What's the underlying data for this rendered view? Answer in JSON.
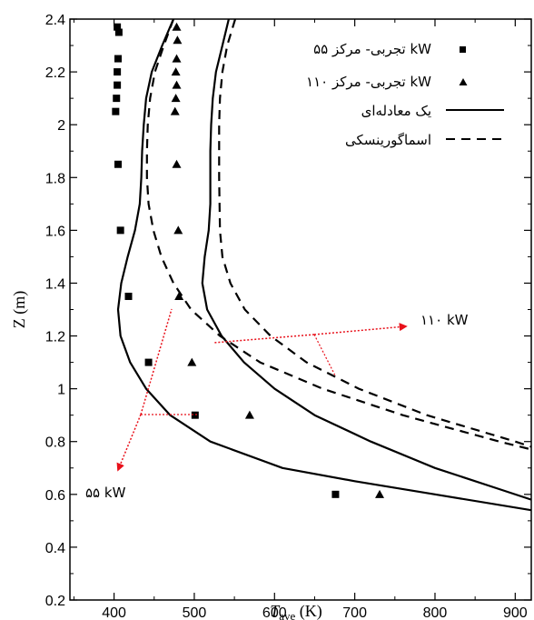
{
  "chart_data": {
    "type": "line",
    "xlabel": {
      "main": "T",
      "sub": "ave",
      "unit": " (K)"
    },
    "ylabel": "Z (m)",
    "xlim": [
      345,
      920
    ],
    "ylim": [
      0.2,
      2.4
    ],
    "xticks": [
      400,
      500,
      600,
      700,
      800,
      900
    ],
    "yticks": [
      0.2,
      0.4,
      0.6,
      0.8,
      1,
      1.2,
      1.4,
      1.6,
      1.8,
      2,
      2.2,
      2.4
    ],
    "ytick_labels": [
      "0.2",
      "0.4",
      "0.6",
      "0.8",
      "1",
      "1.2",
      "1.4",
      "1.6",
      "1.8",
      "2",
      "2.2",
      "2.4"
    ],
    "legend_position": "top-right",
    "series": [
      {
        "name": "تجربی- مرکز ۵۵ kW",
        "style": "square-markers",
        "x": [
          404,
          406,
          405,
          404,
          404,
          403,
          402,
          405,
          408,
          418,
          443,
          501,
          676
        ],
        "y": [
          2.37,
          2.35,
          2.25,
          2.2,
          2.15,
          2.1,
          2.05,
          1.85,
          1.6,
          1.35,
          1.1,
          0.9,
          0.6
        ]
      },
      {
        "name": "تجربی- مرکز ۱۱۰ kW",
        "style": "triangle-markers",
        "x": [
          478,
          479,
          478,
          477,
          478,
          477,
          476,
          478,
          480,
          481,
          497,
          569,
          731
        ],
        "y": [
          2.37,
          2.32,
          2.25,
          2.2,
          2.15,
          2.1,
          2.05,
          1.85,
          1.6,
          1.35,
          1.1,
          0.9,
          0.6
        ]
      },
      {
        "name": "یک معادله‌ای",
        "style": "solid",
        "lines": [
          {
            "x": [
              474,
              460,
              447,
              440,
              437,
              435,
              434,
              432,
              426,
              417,
              409,
              405,
              408,
              420,
              440,
              470,
              520,
              610,
              700,
              800,
              920
            ],
            "y": [
              2.4,
              2.3,
              2.2,
              2.1,
              2.0,
              1.9,
              1.8,
              1.7,
              1.6,
              1.5,
              1.4,
              1.3,
              1.2,
              1.1,
              1.0,
              0.9,
              0.8,
              0.7,
              0.65,
              0.6,
              0.54
            ]
          },
          {
            "x": [
              543,
              535,
              527,
              523,
              521,
              520,
              520,
              520,
              518,
              513,
              510,
              516,
              534,
              562,
              600,
              650,
              720,
              800,
              880,
              920
            ],
            "y": [
              2.4,
              2.3,
              2.2,
              2.1,
              2.0,
              1.9,
              1.8,
              1.7,
              1.6,
              1.5,
              1.4,
              1.3,
              1.2,
              1.1,
              1.0,
              0.9,
              0.8,
              0.7,
              0.62,
              0.58
            ]
          }
        ]
      },
      {
        "name": "اسماگورینسکی",
        "style": "dashed",
        "lines": [
          {
            "x": [
              474,
              462,
              451,
              445,
              442,
              441,
              441,
              443,
              449,
              459,
              474,
              496,
              532,
              582,
              660,
              760,
              880,
              920
            ],
            "y": [
              2.4,
              2.3,
              2.2,
              2.1,
              2.0,
              1.9,
              1.8,
              1.7,
              1.6,
              1.5,
              1.4,
              1.3,
              1.2,
              1.1,
              1.0,
              0.9,
              0.8,
              0.77
            ]
          },
          {
            "x": [
              551,
              541,
              535,
              532,
              531,
              531,
              532,
              535,
              545,
              563,
              595,
              640,
              705,
              790,
              900,
              920
            ],
            "y": [
              2.4,
              2.3,
              2.2,
              2.1,
              2.0,
              1.8,
              1.6,
              1.5,
              1.4,
              1.3,
              1.2,
              1.1,
              1.0,
              0.9,
              0.8,
              0.78
            ]
          }
        ]
      }
    ],
    "annotations": [
      {
        "text": "۱۱۰ kW",
        "target": "110kW-curves"
      },
      {
        "text": "۵۵ kW",
        "target": "55kW-curves"
      }
    ]
  },
  "colors": {
    "axis": "#000000",
    "annotation_arrow": "#e8101a"
  }
}
